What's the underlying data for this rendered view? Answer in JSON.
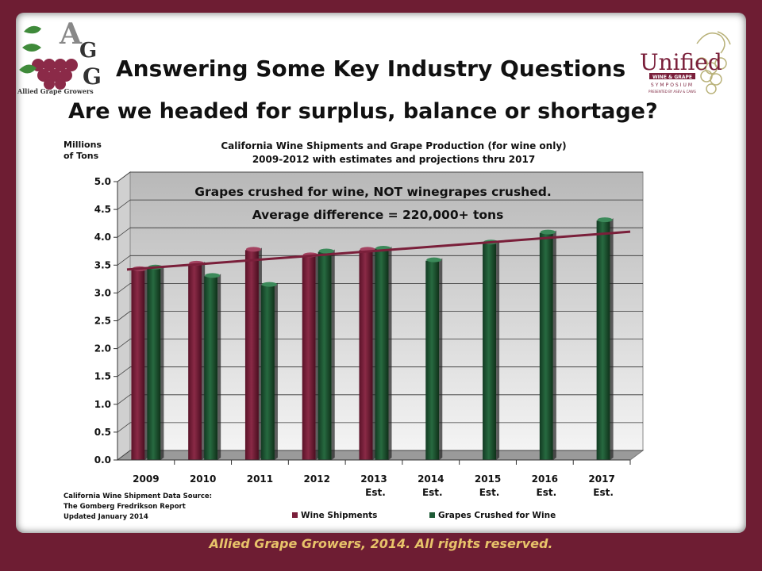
{
  "colors": {
    "frame": "#6e1d33",
    "wine": "#7a1f3a",
    "grape": "#1e5a36",
    "trend": "#7a1f3a",
    "footer": "#e8c36a"
  },
  "logos": {
    "left": {
      "name": "allied-grape-growers-logo",
      "text": "Allied Grape Growers",
      "letters": "AGG"
    },
    "right": {
      "name": "unified-symposium-logo",
      "line1": "Unified",
      "line2": "WINE & GRAPE",
      "line3": "SYMPOSIUM",
      "line4": "PRESENTED BY ASEV & CAWG"
    }
  },
  "headings": {
    "title": "Answering Some Key Industry Questions",
    "subtitle": "Are we headed for surplus, balance or shortage?"
  },
  "chart_data": {
    "type": "bar",
    "title": "California Wine Shipments and Grape Production (for wine only)",
    "subtitle": "2009-2012 with estimates and projections thru 2017",
    "ylabel_line1": "Millions",
    "ylabel_line2": "of Tons",
    "ylim": [
      0,
      5
    ],
    "yticks": [
      "0.0",
      "0.5",
      "1.0",
      "1.5",
      "2.0",
      "2.5",
      "3.0",
      "3.5",
      "4.0",
      "4.5",
      "5.0"
    ],
    "categories": [
      {
        "year": "2009",
        "note": ""
      },
      {
        "year": "2010",
        "note": ""
      },
      {
        "year": "2011",
        "note": ""
      },
      {
        "year": "2012",
        "note": ""
      },
      {
        "year": "2013",
        "note": "Est."
      },
      {
        "year": "2014",
        "note": "Est."
      },
      {
        "year": "2015",
        "note": "Est."
      },
      {
        "year": "2016",
        "note": "Est."
      },
      {
        "year": "2017",
        "note": "Est."
      }
    ],
    "series": [
      {
        "name": "Wine Shipments",
        "values": [
          3.42,
          3.52,
          3.77,
          3.67,
          3.77,
          null,
          null,
          null,
          null
        ]
      },
      {
        "name": "Grapes Crushed for Wine",
        "values": [
          3.45,
          3.3,
          3.14,
          3.74,
          3.79,
          3.58,
          3.9,
          4.08,
          4.3
        ]
      }
    ],
    "trendline": {
      "start": 3.42,
      "end": 4.1
    },
    "annotation_line1": "Grapes crushed for wine, NOT winegrapes crushed.",
    "annotation_line2": "Average difference = 220,000+ tons",
    "grid": true,
    "legend_position": "bottom"
  },
  "source": {
    "line1": "California Wine Shipment Data Source:",
    "line2": "The Gomberg Fredrikson Report",
    "line3": "Updated January 2014"
  },
  "footer": "Allied Grape Growers, 2014.  All rights reserved."
}
